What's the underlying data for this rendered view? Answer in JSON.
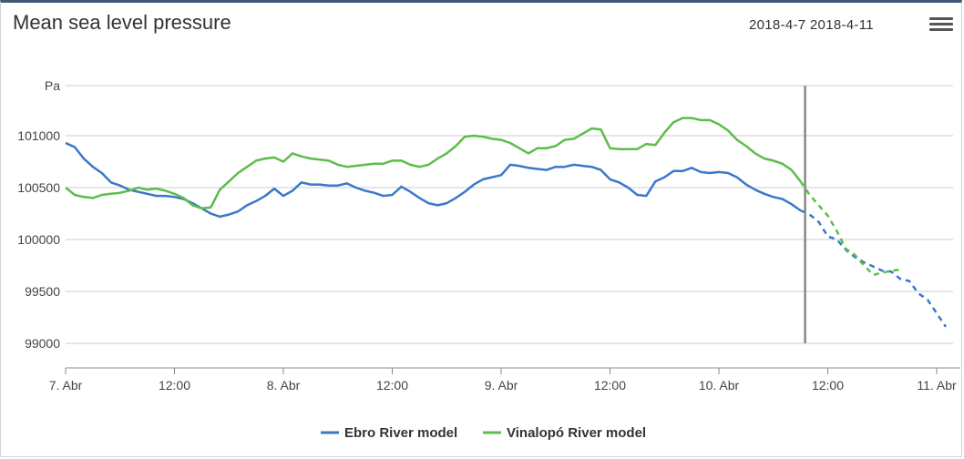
{
  "title": "Mean sea level pressure",
  "date_range": "2018-4-7 2018-4-11",
  "menu_icon": "hamburger-menu-icon",
  "chart_data": {
    "type": "line",
    "title": "Mean sea level pressure",
    "ylabel": "Pa",
    "ylim": [
      98800,
      101500
    ],
    "yticks": [
      99000,
      99500,
      100000,
      100500,
      101000
    ],
    "ytick_labels": [
      "99000",
      "99500",
      "100000",
      "100500",
      "101000"
    ],
    "xlim_hours": [
      0,
      97
    ],
    "xticks_hours": [
      0,
      12,
      24,
      36,
      48,
      60,
      72,
      84,
      96
    ],
    "xtick_labels": [
      "7. Abr",
      "12:00",
      "8. Abr",
      "12:00",
      "9. Abr",
      "12:00",
      "10. Abr",
      "12:00",
      "11. Abr"
    ],
    "vertical_marker_hour": 81.5,
    "grid": true,
    "legend_position": "bottom-center",
    "series": [
      {
        "name": "Ebro River model",
        "color": "#3a78c9",
        "forecast_from_hour": 81.5,
        "x": [
          0,
          1,
          2,
          3,
          4,
          5,
          6,
          7,
          8,
          9,
          10,
          11,
          12,
          13,
          14,
          15,
          16,
          17,
          18,
          19,
          20,
          21,
          22,
          23,
          24,
          25,
          26,
          27,
          28,
          29,
          30,
          31,
          32,
          33,
          34,
          35,
          36,
          37,
          38,
          39,
          40,
          41,
          42,
          43,
          44,
          45,
          46,
          47,
          48,
          49,
          50,
          51,
          52,
          53,
          54,
          55,
          56,
          57,
          58,
          59,
          60,
          61,
          62,
          63,
          64,
          65,
          66,
          67,
          68,
          69,
          70,
          71,
          72,
          73,
          74,
          75,
          76,
          77,
          78,
          79,
          80,
          81,
          82,
          83,
          84,
          85,
          86,
          87,
          88,
          89,
          90,
          91,
          92,
          93,
          94,
          95,
          96,
          97
        ],
        "values": [
          100930,
          100890,
          100780,
          100700,
          100640,
          100550,
          100520,
          100480,
          100460,
          100440,
          100420,
          100420,
          100410,
          100390,
          100350,
          100300,
          100250,
          100220,
          100240,
          100270,
          100330,
          100370,
          100420,
          100490,
          100420,
          100470,
          100550,
          100530,
          100530,
          100520,
          100520,
          100540,
          100500,
          100470,
          100450,
          100420,
          100430,
          100510,
          100460,
          100400,
          100350,
          100330,
          100350,
          100400,
          100460,
          100530,
          100580,
          100600,
          100620,
          100720,
          100710,
          100690,
          100680,
          100670,
          100700,
          100700,
          100720,
          100710,
          100700,
          100670,
          100580,
          100550,
          100500,
          100430,
          100420,
          100560,
          100600,
          100660,
          100660,
          100690,
          100650,
          100640,
          100650,
          100640,
          100600,
          100530,
          100480,
          100440,
          100410,
          100390,
          100340,
          100280,
          100240,
          100170,
          100030,
          100000,
          99900,
          99830,
          99780,
          99740,
          99700,
          99690,
          99620,
          99600,
          99480,
          99420,
          99290,
          99160
        ]
      },
      {
        "name": "Vinalopó River model",
        "color": "#5cbd4a",
        "forecast_from_hour": 81.5,
        "x": [
          0,
          1,
          2,
          3,
          4,
          5,
          6,
          7,
          8,
          9,
          10,
          11,
          12,
          13,
          14,
          15,
          16,
          17,
          18,
          19,
          20,
          21,
          22,
          23,
          24,
          25,
          26,
          27,
          28,
          29,
          30,
          31,
          32,
          33,
          34,
          35,
          36,
          37,
          38,
          39,
          40,
          41,
          42,
          43,
          44,
          45,
          46,
          47,
          48,
          49,
          50,
          51,
          52,
          53,
          54,
          55,
          56,
          57,
          58,
          59,
          60,
          61,
          62,
          63,
          64,
          65,
          66,
          67,
          68,
          69,
          70,
          71,
          72,
          73,
          74,
          75,
          76,
          77,
          78,
          79,
          80,
          81,
          82,
          83,
          84,
          85,
          86,
          87,
          88,
          89,
          90,
          91,
          92
        ],
        "values": [
          100500,
          100430,
          100410,
          100400,
          100430,
          100440,
          100450,
          100470,
          100500,
          100480,
          100490,
          100470,
          100440,
          100400,
          100330,
          100300,
          100310,
          100480,
          100560,
          100640,
          100700,
          100760,
          100780,
          100790,
          100750,
          100830,
          100800,
          100780,
          100770,
          100760,
          100720,
          100700,
          100710,
          100720,
          100730,
          100730,
          100760,
          100760,
          100720,
          100700,
          100720,
          100780,
          100830,
          100900,
          100990,
          101000,
          100990,
          100970,
          100960,
          100930,
          100880,
          100830,
          100880,
          100880,
          100900,
          100960,
          100970,
          101020,
          101070,
          101060,
          100880,
          100870,
          100870,
          100870,
          100920,
          100910,
          101030,
          101130,
          101170,
          101170,
          101150,
          101150,
          101110,
          101050,
          100960,
          100900,
          100830,
          100780,
          100760,
          100730,
          100670,
          100560,
          100430,
          100330,
          100230,
          100080,
          99910,
          99850,
          99750,
          99660,
          99680,
          99700,
          99710
        ]
      }
    ]
  }
}
